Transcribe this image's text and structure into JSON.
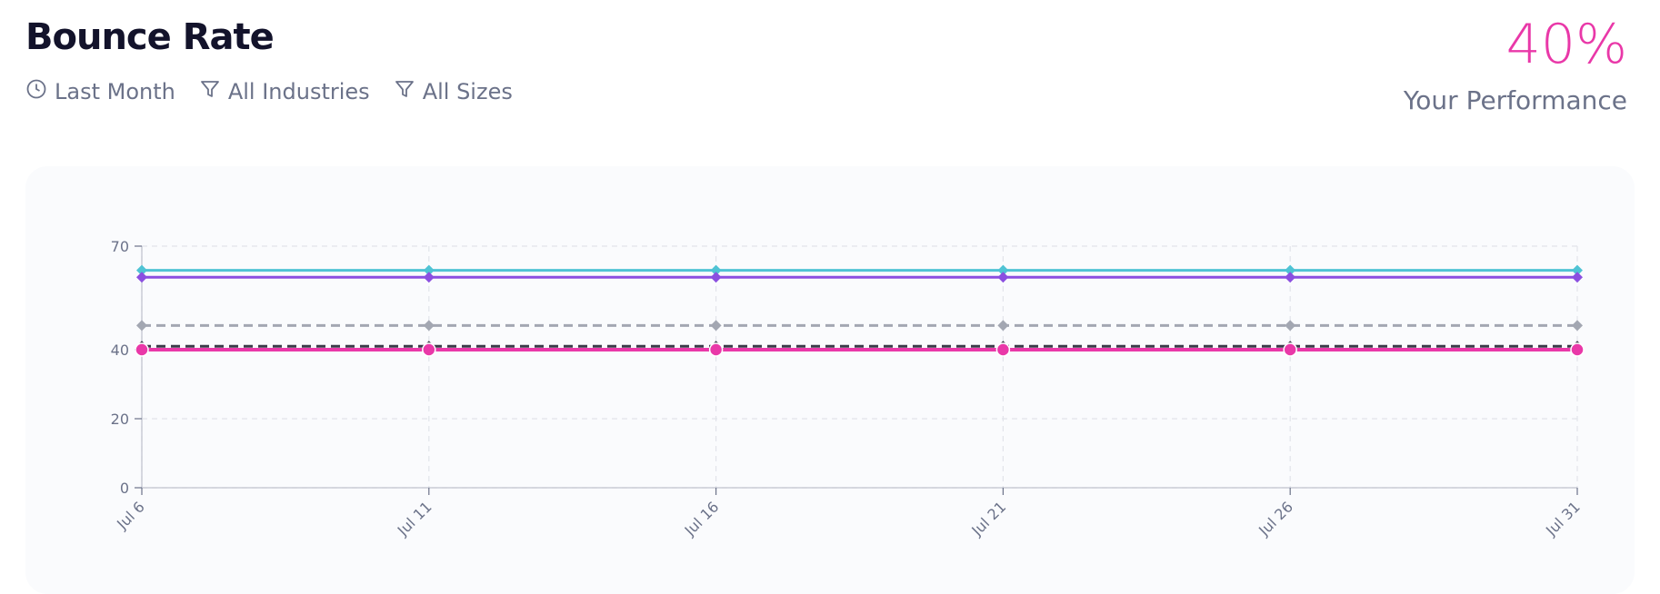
{
  "header": {
    "title": "Bounce Rate",
    "filters": [
      {
        "label": "Last Month",
        "icon": "clock-icon"
      },
      {
        "label": "All Industries",
        "icon": "filter-icon"
      },
      {
        "label": "All Sizes",
        "icon": "filter-icon"
      }
    ]
  },
  "performance": {
    "value": "40%",
    "label": "Your Performance",
    "color": "#e938a8"
  },
  "chart_data": {
    "type": "line",
    "x": [
      "Jul 6",
      "Jul 11",
      "Jul 16",
      "Jul 21",
      "Jul 26",
      "Jul 31"
    ],
    "ylim": [
      0,
      70
    ],
    "yticks": [
      0,
      20,
      40,
      70
    ],
    "grid": true,
    "series": [
      {
        "values": [
          63,
          63,
          63,
          63,
          63,
          63
        ],
        "color": "#4fc3d4",
        "dashed": false,
        "marker": "diamond"
      },
      {
        "values": [
          61,
          61,
          61,
          61,
          61,
          61
        ],
        "color": "#8b4fe0",
        "dashed": false,
        "marker": "diamond"
      },
      {
        "values": [
          47,
          47,
          47,
          47,
          47,
          47
        ],
        "color": "#a3a7b2",
        "dashed": true,
        "marker": "diamond"
      },
      {
        "values": [
          41,
          41,
          41,
          41,
          41,
          41
        ],
        "color": "#3a3a48",
        "dashed": true,
        "marker": "diamond"
      },
      {
        "values": [
          40,
          40,
          40,
          40,
          40,
          40
        ],
        "color": "#e938a8",
        "dashed": false,
        "marker": "circle"
      }
    ]
  }
}
